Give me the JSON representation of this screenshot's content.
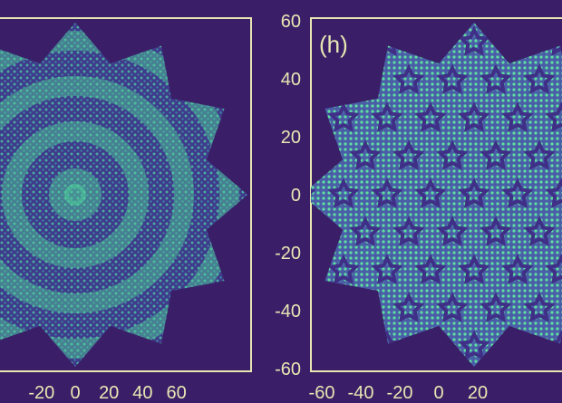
{
  "colors": {
    "background": "#3a1f68",
    "plot_background": "#3a1f68",
    "axis": "#e8e7b3",
    "pattern_dark": "#3f3a8c",
    "pattern_mid": "#3aa6a6",
    "pattern_light": "#4fd49a"
  },
  "chart_data": [
    {
      "type": "heatmap",
      "title": "",
      "xlabel": "",
      "ylabel": "",
      "xlim": [
        -60,
        60
      ],
      "ylim": [
        -60,
        60
      ],
      "xticks": [
        "-20",
        "0",
        "20",
        "40",
        "60"
      ],
      "yticks": [],
      "pattern": "concentric ring pattern inside twelve-pointed star outline",
      "grid": false
    },
    {
      "type": "heatmap",
      "title": "",
      "panel_label": "(h)",
      "xlabel": "",
      "ylabel": "",
      "xlim": [
        -60,
        60
      ],
      "ylim": [
        -60,
        60
      ],
      "xticks": [
        "-60",
        "-40",
        "-20",
        "0",
        "20"
      ],
      "yticks": [
        "60",
        "40",
        "20",
        "0",
        "-20",
        "-40",
        "-60"
      ],
      "pattern": "quasicrystalline star motif lattice inside twelve-pointed outline",
      "grid": false
    }
  ]
}
